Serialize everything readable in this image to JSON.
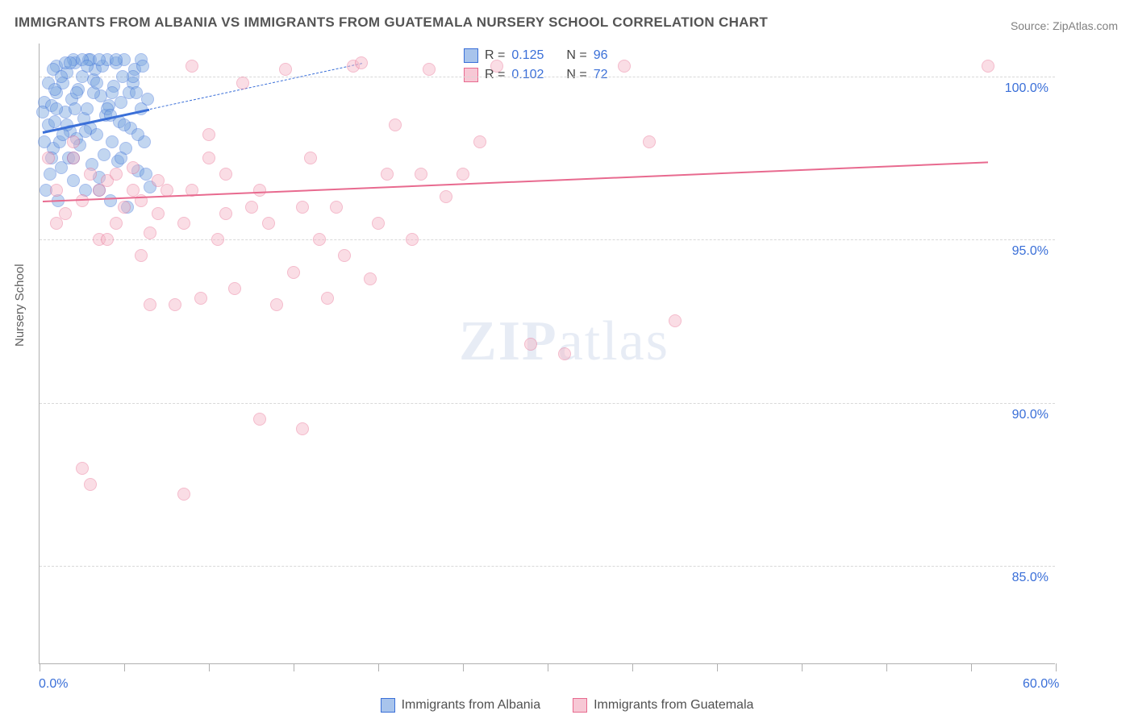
{
  "title": "IMMIGRANTS FROM ALBANIA VS IMMIGRANTS FROM GUATEMALA NURSERY SCHOOL CORRELATION CHART",
  "source": "Source: ZipAtlas.com",
  "ylabel": "Nursery School",
  "watermark_a": "ZIP",
  "watermark_b": "atlas",
  "chart": {
    "type": "scatter-correlation",
    "background_color": "#ffffff",
    "grid_color": "#d8d8d8",
    "axis_color": "#b0b0b0",
    "tick_label_color": "#3a6fd8",
    "xlim": [
      0,
      60
    ],
    "ylim": [
      82,
      101
    ],
    "xtick_positions": [
      0,
      5,
      10,
      15,
      20,
      25,
      30,
      35,
      40,
      45,
      50,
      55,
      60
    ],
    "xtick_labels": {
      "0": "0.0%",
      "60": "60.0%"
    },
    "ytick_positions": [
      85,
      90,
      95,
      100
    ],
    "ytick_labels": {
      "85": "85.0%",
      "90": "90.0%",
      "95": "95.0%",
      "100": "100.0%"
    },
    "marker_radius": 8,
    "marker_opacity": 0.45,
    "series": [
      {
        "name": "Immigrants from Albania",
        "color_fill": "#7aa6e0",
        "color_stroke": "#3a6fd8",
        "trend_solid": {
          "x1": 0.2,
          "y1": 98.3,
          "x2": 6.5,
          "y2": 99.0,
          "width": 3
        },
        "trend_dashed": {
          "x1": 6.5,
          "y1": 99.0,
          "x2": 19,
          "y2": 100.4,
          "width": 1.5
        },
        "R": "0.125",
        "N": "96",
        "points": [
          [
            0.3,
            99.2
          ],
          [
            0.5,
            98.5
          ],
          [
            0.7,
            99.1
          ],
          [
            0.8,
            97.8
          ],
          [
            0.9,
            98.6
          ],
          [
            1.0,
            99.5
          ],
          [
            1.0,
            100.3
          ],
          [
            1.2,
            98.0
          ],
          [
            1.3,
            97.2
          ],
          [
            1.4,
            99.8
          ],
          [
            1.5,
            98.9
          ],
          [
            1.6,
            100.1
          ],
          [
            1.7,
            97.5
          ],
          [
            1.8,
            98.3
          ],
          [
            1.9,
            99.3
          ],
          [
            2.0,
            96.8
          ],
          [
            2.1,
            100.4
          ],
          [
            2.2,
            98.1
          ],
          [
            2.3,
            99.6
          ],
          [
            2.4,
            97.9
          ],
          [
            2.5,
            100.0
          ],
          [
            2.6,
            98.7
          ],
          [
            2.7,
            96.5
          ],
          [
            2.8,
            99.0
          ],
          [
            2.9,
            100.5
          ],
          [
            3.0,
            98.4
          ],
          [
            3.1,
            97.3
          ],
          [
            3.2,
            99.9
          ],
          [
            3.3,
            100.2
          ],
          [
            3.4,
            98.2
          ],
          [
            3.5,
            96.9
          ],
          [
            3.6,
            99.4
          ],
          [
            3.7,
            100.3
          ],
          [
            3.8,
            97.6
          ],
          [
            3.9,
            98.8
          ],
          [
            4.0,
            100.5
          ],
          [
            4.1,
            99.1
          ],
          [
            4.2,
            96.2
          ],
          [
            4.3,
            98.0
          ],
          [
            4.4,
            99.7
          ],
          [
            4.5,
            100.4
          ],
          [
            4.6,
            97.4
          ],
          [
            4.7,
            98.6
          ],
          [
            4.8,
            99.2
          ],
          [
            5.0,
            100.5
          ],
          [
            5.1,
            97.8
          ],
          [
            5.2,
            96.0
          ],
          [
            5.4,
            98.4
          ],
          [
            5.5,
            99.8
          ],
          [
            5.6,
            100.2
          ],
          [
            5.8,
            97.1
          ],
          [
            6.0,
            100.5
          ],
          [
            6.2,
            98.0
          ],
          [
            6.4,
            99.3
          ],
          [
            6.5,
            96.6
          ],
          [
            0.4,
            96.5
          ],
          [
            0.6,
            97.0
          ],
          [
            1.1,
            96.2
          ],
          [
            2.0,
            100.5
          ],
          [
            3.0,
            100.5
          ],
          [
            1.5,
            100.4
          ],
          [
            4.5,
            100.5
          ],
          [
            2.5,
            100.5
          ],
          [
            3.5,
            100.5
          ],
          [
            0.8,
            100.2
          ],
          [
            1.8,
            100.4
          ],
          [
            0.5,
            99.8
          ],
          [
            1.0,
            99.0
          ],
          [
            2.2,
            99.5
          ],
          [
            0.3,
            98.0
          ],
          [
            1.6,
            98.5
          ],
          [
            2.8,
            100.3
          ],
          [
            3.2,
            99.5
          ],
          [
            0.9,
            99.6
          ],
          [
            1.4,
            98.2
          ],
          [
            2.0,
            97.5
          ],
          [
            4.0,
            99.0
          ],
          [
            5.0,
            98.5
          ],
          [
            3.5,
            96.5
          ],
          [
            4.3,
            99.5
          ],
          [
            5.5,
            100.0
          ],
          [
            6.0,
            99.0
          ],
          [
            5.8,
            98.2
          ],
          [
            4.8,
            97.5
          ],
          [
            0.2,
            98.9
          ],
          [
            0.7,
            97.5
          ],
          [
            1.3,
            100.0
          ],
          [
            2.1,
            99.0
          ],
          [
            2.7,
            98.3
          ],
          [
            3.4,
            99.8
          ],
          [
            4.2,
            98.8
          ],
          [
            5.3,
            99.5
          ],
          [
            6.1,
            100.3
          ],
          [
            6.3,
            97.0
          ],
          [
            5.7,
            99.5
          ],
          [
            4.9,
            100.0
          ]
        ]
      },
      {
        "name": "Immigrants from Guatemala",
        "color_fill": "#f4b6c6",
        "color_stroke": "#e86a8f",
        "trend_solid": {
          "x1": 0.2,
          "y1": 96.2,
          "x2": 56,
          "y2": 97.4,
          "width": 2.5
        },
        "R": "0.102",
        "N": "72",
        "points": [
          [
            0.5,
            97.5
          ],
          [
            1.0,
            96.5
          ],
          [
            1.5,
            95.8
          ],
          [
            2.0,
            98.0
          ],
          [
            2.5,
            96.2
          ],
          [
            3.0,
            97.0
          ],
          [
            3.5,
            95.0
          ],
          [
            4.0,
            96.8
          ],
          [
            4.5,
            95.5
          ],
          [
            5.0,
            96.0
          ],
          [
            5.5,
            97.2
          ],
          [
            6.0,
            96.2
          ],
          [
            6.5,
            95.2
          ],
          [
            7.0,
            95.8
          ],
          [
            7.5,
            96.5
          ],
          [
            8.0,
            93.0
          ],
          [
            8.5,
            95.5
          ],
          [
            9.0,
            100.3
          ],
          [
            9.5,
            93.2
          ],
          [
            10.0,
            98.2
          ],
          [
            10.5,
            95.0
          ],
          [
            11.0,
            97.0
          ],
          [
            11.5,
            93.5
          ],
          [
            12.0,
            99.8
          ],
          [
            13.0,
            89.5
          ],
          [
            13.5,
            95.5
          ],
          [
            14.0,
            93.0
          ],
          [
            14.5,
            100.2
          ],
          [
            15.0,
            94.0
          ],
          [
            15.5,
            89.2
          ],
          [
            16.0,
            97.5
          ],
          [
            17.0,
            93.2
          ],
          [
            17.5,
            96.0
          ],
          [
            18.0,
            94.5
          ],
          [
            18.5,
            100.3
          ],
          [
            19.0,
            100.4
          ],
          [
            19.5,
            93.8
          ],
          [
            20.0,
            95.5
          ],
          [
            20.5,
            97.0
          ],
          [
            21.0,
            98.5
          ],
          [
            22.0,
            95.0
          ],
          [
            22.5,
            97.0
          ],
          [
            23.0,
            100.2
          ],
          [
            24.0,
            96.3
          ],
          [
            25.0,
            97.0
          ],
          [
            26.0,
            98.0
          ],
          [
            27.0,
            100.3
          ],
          [
            29.0,
            91.8
          ],
          [
            31.0,
            91.5
          ],
          [
            34.5,
            100.3
          ],
          [
            36.0,
            98.0
          ],
          [
            37.5,
            92.5
          ],
          [
            2.0,
            97.5
          ],
          [
            3.5,
            96.5
          ],
          [
            5.5,
            96.5
          ],
          [
            7.0,
            96.8
          ],
          [
            4.0,
            95.0
          ],
          [
            10.0,
            97.5
          ],
          [
            11.0,
            95.8
          ],
          [
            12.5,
            96.0
          ],
          [
            6.5,
            93.0
          ],
          [
            8.5,
            87.2
          ],
          [
            3.0,
            87.5
          ],
          [
            2.5,
            88.0
          ],
          [
            1.0,
            95.5
          ],
          [
            4.5,
            97.0
          ],
          [
            6.0,
            94.5
          ],
          [
            9.0,
            96.5
          ],
          [
            13.0,
            96.5
          ],
          [
            15.5,
            96.0
          ],
          [
            16.5,
            95.0
          ],
          [
            56.0,
            100.3
          ]
        ]
      }
    ]
  },
  "legend_top": {
    "rows": [
      {
        "swatch_fill": "#a8c4ec",
        "swatch_stroke": "#3a6fd8",
        "r_label": "R =",
        "r_val": "0.125",
        "n_label": "N =",
        "n_val": "96"
      },
      {
        "swatch_fill": "#f7c8d5",
        "swatch_stroke": "#e86a8f",
        "r_label": "R =",
        "r_val": "0.102",
        "n_label": "N =",
        "n_val": "72"
      }
    ]
  },
  "legend_bottom": {
    "items": [
      {
        "swatch_fill": "#a8c4ec",
        "swatch_stroke": "#3a6fd8",
        "label": "Immigrants from Albania"
      },
      {
        "swatch_fill": "#f7c8d5",
        "swatch_stroke": "#e86a8f",
        "label": "Immigrants from Guatemala"
      }
    ]
  }
}
